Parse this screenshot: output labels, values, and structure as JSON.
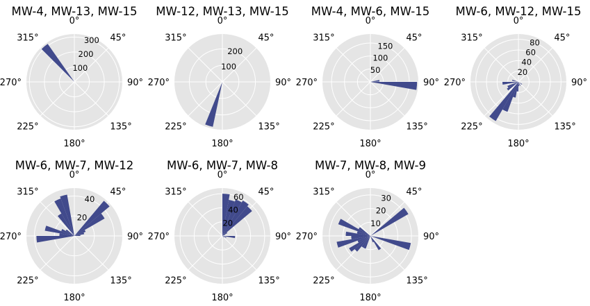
{
  "figure": {
    "style": "ggplot polar rose diagrams",
    "colors": {
      "face": "#e5e5e5",
      "grid": "#ffffff",
      "bar": "#414a8c",
      "text": "#000000"
    },
    "angle_labels": [
      "0°",
      "45°",
      "90°",
      "135°",
      "180°",
      "225°",
      "270°",
      "315°"
    ]
  },
  "chart_data": [
    {
      "type": "rose",
      "title": "MW-4, MW-13, MW-15",
      "rlim": [
        0,
        320
      ],
      "rticks": [
        100,
        200,
        300
      ],
      "rtick_labels": [
        "100",
        "200",
        "300"
      ],
      "bar_width_deg": 10,
      "bars": [
        {
          "direction": 320,
          "value": 310
        }
      ]
    },
    {
      "type": "rose",
      "title": "MW-12, MW-13, MW-15",
      "rlim": [
        0,
        290
      ],
      "rticks": [
        100,
        200
      ],
      "rtick_labels": [
        "100",
        "200"
      ],
      "bar_width_deg": 10,
      "bars": [
        {
          "direction": 197,
          "value": 278
        }
      ]
    },
    {
      "type": "rose",
      "title": "MW-4, MW-6, MW-15",
      "rlim": [
        0,
        185
      ],
      "rticks": [
        50,
        100,
        150
      ],
      "rtick_labels": [
        "50",
        "100",
        "150"
      ],
      "bar_width_deg": 10,
      "bars": [
        {
          "direction": 95,
          "value": 180
        },
        {
          "direction": 83,
          "value": 35
        }
      ]
    },
    {
      "type": "rose",
      "title": "MW-6, MW-12, MW-15",
      "rlim": [
        0,
        90
      ],
      "rticks": [
        20,
        40,
        60,
        80
      ],
      "rtick_labels": [
        "20",
        "40",
        "60",
        "80"
      ],
      "bar_width_deg": 10,
      "bars": [
        {
          "direction": 215,
          "value": 85
        },
        {
          "direction": 205,
          "value": 60
        },
        {
          "direction": 195,
          "value": 30
        },
        {
          "direction": 185,
          "value": 18
        },
        {
          "direction": 235,
          "value": 25
        },
        {
          "direction": 245,
          "value": 22
        },
        {
          "direction": 265,
          "value": 30
        },
        {
          "direction": 285,
          "value": 12
        },
        {
          "direction": 175,
          "value": 8
        },
        {
          "direction": 155,
          "value": 8
        },
        {
          "direction": 125,
          "value": 8
        }
      ]
    },
    {
      "type": "rose",
      "title": "MW-6, MW-7, MW-12",
      "rlim": [
        0,
        48
      ],
      "rticks": [
        20,
        40
      ],
      "rtick_labels": [
        "20",
        "40"
      ],
      "bar_width_deg": 10,
      "bars": [
        {
          "direction": 45,
          "value": 46
        },
        {
          "direction": 55,
          "value": 35
        },
        {
          "direction": 65,
          "value": 12
        },
        {
          "direction": 75,
          "value": 10
        },
        {
          "direction": 85,
          "value": 6
        },
        {
          "direction": 345,
          "value": 42
        },
        {
          "direction": 335,
          "value": 40
        },
        {
          "direction": 325,
          "value": 26
        },
        {
          "direction": 305,
          "value": 10
        },
        {
          "direction": 295,
          "value": 14
        },
        {
          "direction": 285,
          "value": 30
        },
        {
          "direction": 275,
          "value": 15
        },
        {
          "direction": 265,
          "value": 38
        }
      ]
    },
    {
      "type": "rose",
      "title": "MW-6, MW-7, MW-8",
      "rlim": [
        0,
        68
      ],
      "rticks": [
        20,
        40,
        60
      ],
      "rtick_labels": [
        "20",
        "40",
        "60"
      ],
      "bar_width_deg": 10,
      "bars": [
        {
          "direction": 5,
          "value": 60
        },
        {
          "direction": 15,
          "value": 52
        },
        {
          "direction": 25,
          "value": 55
        },
        {
          "direction": 35,
          "value": 58
        },
        {
          "direction": 45,
          "value": 55
        },
        {
          "direction": 55,
          "value": 8
        },
        {
          "direction": 65,
          "value": 4
        },
        {
          "direction": 95,
          "value": 18
        },
        {
          "direction": 115,
          "value": 6
        },
        {
          "direction": 135,
          "value": 3
        }
      ]
    },
    {
      "type": "rose",
      "title": "MW-7, MW-8, MW-9",
      "rlim": [
        0,
        35
      ],
      "rticks": [
        10,
        20,
        30
      ],
      "rtick_labels": [
        "10",
        "20",
        "30"
      ],
      "bar_width_deg": 10,
      "bars": [
        {
          "direction": 55,
          "value": 32
        },
        {
          "direction": 105,
          "value": 30
        },
        {
          "direction": 145,
          "value": 12
        },
        {
          "direction": 155,
          "value": 5
        },
        {
          "direction": 205,
          "value": 10
        },
        {
          "direction": 215,
          "value": 10
        },
        {
          "direction": 225,
          "value": 15
        },
        {
          "direction": 235,
          "value": 18
        },
        {
          "direction": 245,
          "value": 10
        },
        {
          "direction": 255,
          "value": 25
        },
        {
          "direction": 265,
          "value": 14
        },
        {
          "direction": 275,
          "value": 18
        },
        {
          "direction": 285,
          "value": 10
        },
        {
          "direction": 295,
          "value": 25
        },
        {
          "direction": 305,
          "value": 10
        }
      ]
    }
  ]
}
